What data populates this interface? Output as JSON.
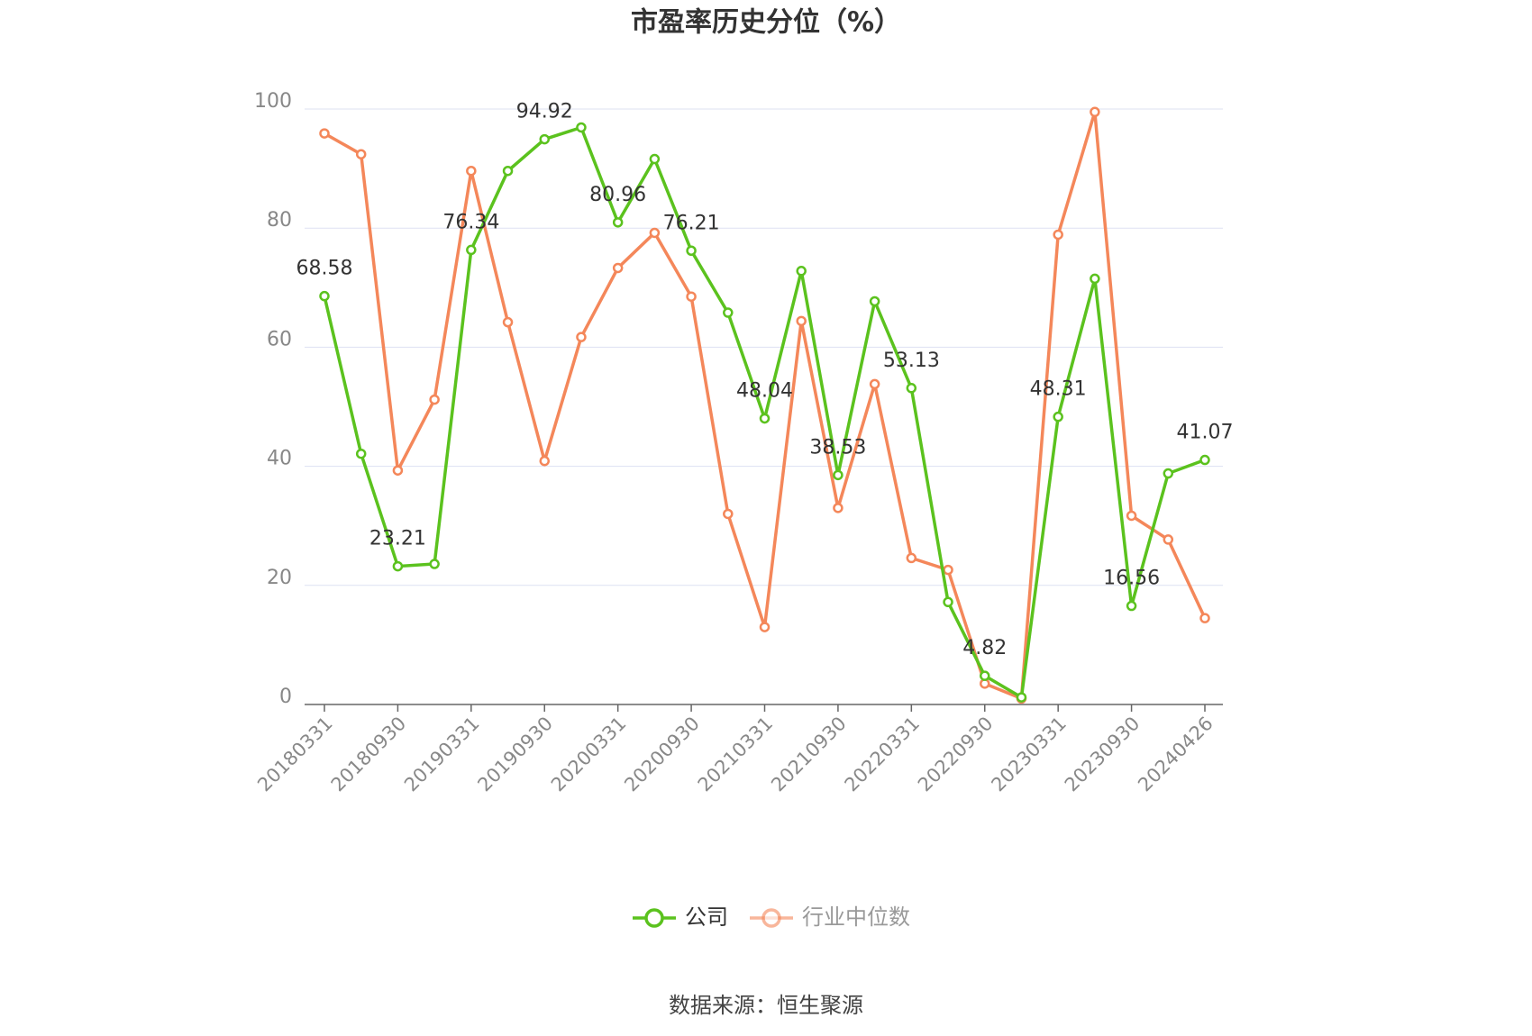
{
  "chart_data": {
    "type": "line",
    "title": "市盈率历史分位（%）",
    "categories": [
      "20180331",
      null,
      "20180930",
      null,
      "20190331",
      null,
      "20190930",
      null,
      "20200331",
      null,
      "20200930",
      null,
      "20210331",
      null,
      "20210930",
      null,
      "20220331",
      null,
      "20220930",
      null,
      "20230331",
      null,
      "20230930",
      null,
      "20240426"
    ],
    "series": [
      {
        "name": "公司",
        "color": "#5bc21e",
        "values": [
          68.58,
          42.1,
          23.21,
          23.6,
          76.34,
          89.6,
          94.92,
          96.9,
          80.96,
          91.6,
          76.21,
          65.8,
          48.04,
          72.8,
          38.53,
          67.7,
          53.13,
          17.2,
          4.82,
          1.2,
          48.31,
          71.5,
          16.56,
          38.8,
          41.07
        ],
        "value_labels": [
          "68.58",
          null,
          "23.21",
          null,
          "76.34",
          null,
          "94.92",
          null,
          "80.96",
          null,
          "76.21",
          null,
          "48.04",
          null,
          "38.53",
          null,
          "53.13",
          null,
          "4.82",
          null,
          "48.31",
          null,
          "16.56",
          null,
          "41.07"
        ]
      },
      {
        "name": "行业中位数",
        "color": "#f4875a",
        "values": [
          95.9,
          92.4,
          39.3,
          51.2,
          89.6,
          64.2,
          40.9,
          61.7,
          73.3,
          79.2,
          68.5,
          32.0,
          13.0,
          64.4,
          33.0,
          53.8,
          24.6,
          22.6,
          3.5,
          1.0,
          78.9,
          99.5,
          31.7,
          27.7,
          14.5
        ]
      }
    ],
    "ylim": [
      0,
      100
    ],
    "yticks": [
      0,
      20,
      40,
      60,
      80,
      100
    ],
    "grid": true,
    "source": "数据来源：恒生聚源"
  }
}
